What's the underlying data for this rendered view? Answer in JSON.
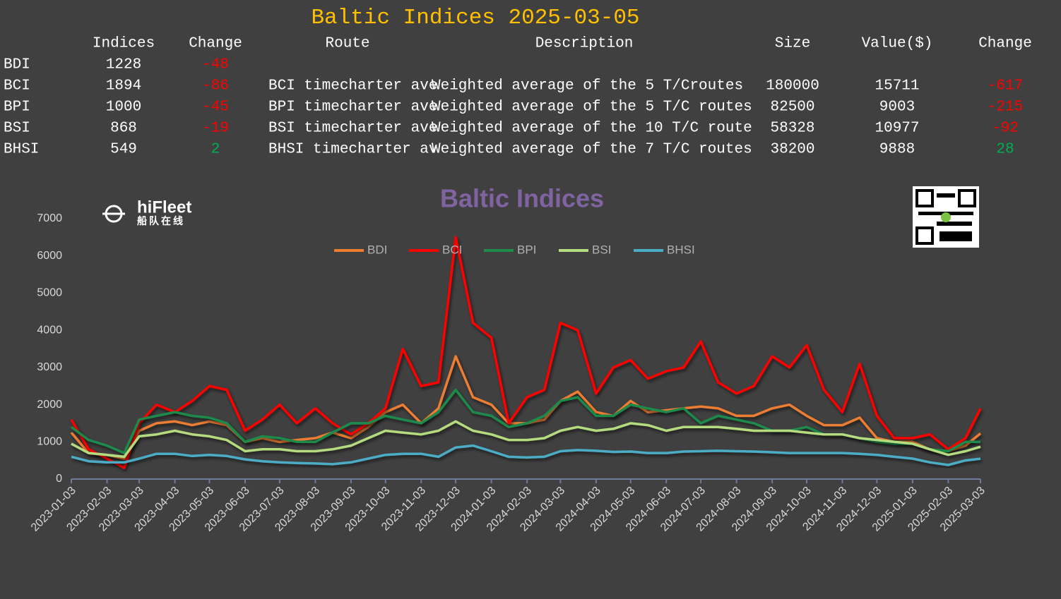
{
  "header": {
    "title": "Baltic Indices 2025-03-05"
  },
  "table": {
    "columns": [
      "Indices",
      "Change",
      "Route",
      "Description",
      "Size",
      "Value($)",
      "Change"
    ],
    "rows": [
      [
        "BDI",
        1228,
        -48
      ],
      [
        "BCI",
        1894,
        -86,
        "BCI timecharter ave",
        "Weighted average of the 5 T/Croutes",
        180000,
        15711,
        -617
      ],
      [
        "BPI",
        1000,
        -45,
        "BPI timecharter ave",
        "Weighted average of the 5 T/C routes",
        82500,
        9003,
        -215
      ],
      [
        "BSI",
        868,
        -19,
        "BSI timecharter ave",
        "Weighted average of the 10 T/C route",
        58328,
        10977,
        -92
      ],
      [
        "BHSI",
        549,
        2,
        "BHSI timecharter av",
        "Weighted average of the 7 T/C routes",
        38200,
        9888,
        28
      ]
    ]
  },
  "logo": {
    "name": "hiFleet",
    "tagline": "船队在线"
  },
  "chart_data": {
    "type": "line",
    "title": "Baltic Indices",
    "x": [
      "2023-01-03",
      "2023-01-18",
      "2023-02-03",
      "2023-02-18",
      "2023-03-03",
      "2023-03-18",
      "2023-04-03",
      "2023-04-18",
      "2023-05-03",
      "2023-05-18",
      "2023-06-03",
      "2023-06-18",
      "2023-07-03",
      "2023-07-18",
      "2023-08-03",
      "2023-08-18",
      "2023-09-03",
      "2023-09-18",
      "2023-10-03",
      "2023-10-18",
      "2023-11-03",
      "2023-11-18",
      "2023-12-03",
      "2023-12-18",
      "2024-01-03",
      "2024-01-18",
      "2024-02-03",
      "2024-02-18",
      "2024-03-03",
      "2024-03-18",
      "2024-04-03",
      "2024-04-18",
      "2024-05-03",
      "2024-05-18",
      "2024-06-03",
      "2024-06-18",
      "2024-07-03",
      "2024-07-18",
      "2024-08-03",
      "2024-08-18",
      "2024-09-03",
      "2024-09-18",
      "2024-10-03",
      "2024-10-18",
      "2024-11-03",
      "2024-11-18",
      "2024-12-03",
      "2024-12-18",
      "2025-01-03",
      "2025-01-18",
      "2025-02-03",
      "2025-02-18",
      "2025-03-03"
    ],
    "series": [
      {
        "name": "BDI",
        "color": "#ed7d31",
        "values": [
          1250,
          700,
          650,
          550,
          1300,
          1500,
          1550,
          1450,
          1550,
          1450,
          1000,
          1100,
          1000,
          1050,
          1100,
          1250,
          1100,
          1400,
          1800,
          2000,
          1500,
          1900,
          3300,
          2200,
          2000,
          1500,
          1500,
          1600,
          2100,
          2350,
          1800,
          1700,
          2100,
          1800,
          1850,
          1900,
          1950,
          1900,
          1700,
          1700,
          1900,
          2000,
          1700,
          1450,
          1450,
          1650,
          1100,
          1000,
          1000,
          800,
          750,
          900,
          1228
        ]
      },
      {
        "name": "BCI",
        "color": "#ff0000",
        "values": [
          1600,
          800,
          550,
          300,
          1500,
          2000,
          1800,
          2100,
          2500,
          2400,
          1300,
          1600,
          2000,
          1500,
          1900,
          1500,
          1200,
          1500,
          1900,
          3500,
          2500,
          2600,
          6500,
          4200,
          3800,
          1500,
          2200,
          2400,
          4200,
          4000,
          2300,
          3000,
          3200,
          2700,
          2900,
          3000,
          3700,
          2600,
          2300,
          2500,
          3300,
          3000,
          3600,
          2400,
          1800,
          3100,
          1700,
          1100,
          1100,
          1200,
          800,
          1100,
          1894
        ]
      },
      {
        "name": "BPI",
        "color": "#1e8a4c",
        "values": [
          1400,
          1050,
          900,
          700,
          1600,
          1700,
          1800,
          1700,
          1650,
          1500,
          1000,
          1150,
          1100,
          1000,
          1000,
          1250,
          1500,
          1500,
          1700,
          1600,
          1500,
          1800,
          2400,
          1800,
          1700,
          1400,
          1500,
          1700,
          2100,
          2200,
          1700,
          1700,
          2000,
          1900,
          1800,
          1900,
          1500,
          1700,
          1600,
          1500,
          1300,
          1300,
          1400,
          1200,
          1200,
          1100,
          1000,
          950,
          950,
          800,
          750,
          1000,
          1000
        ]
      },
      {
        "name": "BSI",
        "color": "#b4dc7f",
        "values": [
          950,
          700,
          650,
          600,
          1150,
          1200,
          1300,
          1200,
          1150,
          1050,
          750,
          800,
          800,
          750,
          750,
          800,
          900,
          1100,
          1300,
          1250,
          1200,
          1300,
          1550,
          1300,
          1200,
          1050,
          1050,
          1100,
          1300,
          1400,
          1300,
          1350,
          1500,
          1450,
          1300,
          1400,
          1400,
          1400,
          1350,
          1300,
          1300,
          1300,
          1250,
          1200,
          1200,
          1100,
          1050,
          1000,
          950,
          800,
          650,
          750,
          868
        ]
      },
      {
        "name": "BHSI",
        "color": "#4bacc6",
        "values": [
          600,
          480,
          450,
          450,
          550,
          680,
          680,
          620,
          650,
          620,
          530,
          480,
          450,
          430,
          420,
          400,
          450,
          550,
          650,
          680,
          680,
          600,
          850,
          900,
          750,
          600,
          580,
          600,
          750,
          780,
          760,
          730,
          740,
          700,
          700,
          740,
          750,
          760,
          750,
          740,
          720,
          700,
          700,
          700,
          700,
          680,
          650,
          600,
          550,
          450,
          380,
          500,
          549
        ]
      }
    ],
    "xlim": [
      "2023-01-03",
      "2025-03-03"
    ],
    "xticks": [
      "2023-01-03",
      "2023-02-03",
      "2023-03-03",
      "2023-04-03",
      "2023-05-03",
      "2023-06-03",
      "2023-07-03",
      "2023-08-03",
      "2023-09-03",
      "2023-10-03",
      "2023-11-03",
      "2023-12-03",
      "2024-01-03",
      "2024-02-03",
      "2024-03-03",
      "2024-04-03",
      "2024-05-03",
      "2024-06-03",
      "2024-07-03",
      "2024-08-03",
      "2024-09-03",
      "2024-10-03",
      "2024-11-03",
      "2024-12-03",
      "2025-01-03",
      "2025-02-03",
      "2025-03-03"
    ],
    "ylim": [
      0,
      7000
    ],
    "yticks": [
      0,
      1000,
      2000,
      3000,
      4000,
      5000,
      6000,
      7000
    ],
    "grid": false,
    "legend": "top"
  }
}
